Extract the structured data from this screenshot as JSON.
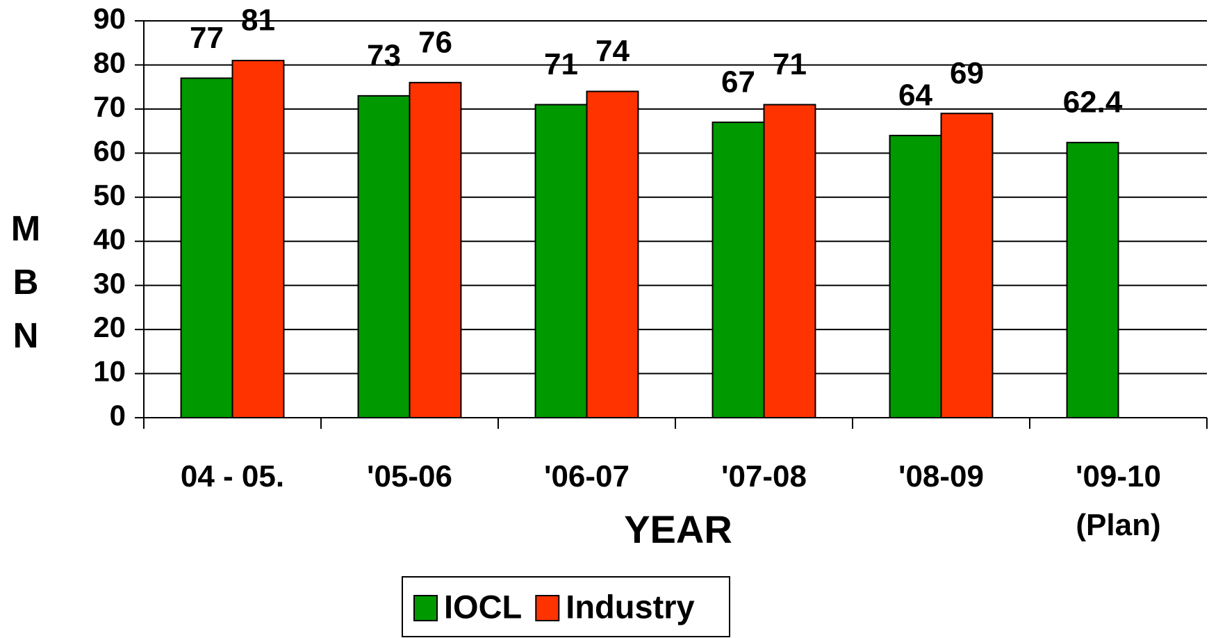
{
  "chart_data": {
    "type": "bar",
    "x_label": "YEAR",
    "y_label": "MBN",
    "categories": [
      "04 - 05.",
      "'05-06",
      "'06-07",
      "'07-08",
      "'08-09",
      "'09-10\n(Plan)"
    ],
    "series": [
      {
        "name": "IOCL",
        "color": "#009900",
        "values": [
          77,
          73,
          71,
          67,
          64,
          62.4
        ]
      },
      {
        "name": "Industry",
        "color": "#ff3300",
        "values": [
          81,
          76,
          74,
          71,
          69,
          null
        ]
      }
    ],
    "ylim": [
      0,
      90
    ],
    "yticks": [
      0,
      10,
      20,
      30,
      40,
      50,
      60,
      70,
      80,
      90
    ],
    "grid": true,
    "legend": "bottom"
  }
}
